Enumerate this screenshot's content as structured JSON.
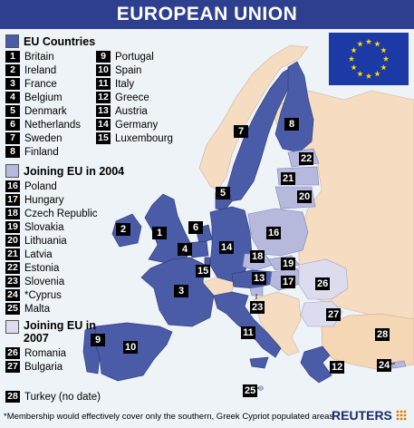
{
  "title": "EUROPEAN UNION",
  "colors": {
    "eu": "#4a5ca8",
    "eu2004": "#b6b8dc",
    "eu2007": "#dcdcee",
    "turkey": "#f5d6b5",
    "nonmember": "#f6ddc1",
    "sea": "#eef3f8",
    "title_bar": "#2e3f8f",
    "flag_blue": "#1c3aa6",
    "flag_star": "#ffd500"
  },
  "legend": {
    "eu_countries": {
      "heading": "EU Countries",
      "items": [
        {
          "n": "1",
          "name": "Britain"
        },
        {
          "n": "2",
          "name": "Ireland"
        },
        {
          "n": "3",
          "name": "France"
        },
        {
          "n": "4",
          "name": "Belgium"
        },
        {
          "n": "5",
          "name": "Denmark"
        },
        {
          "n": "6",
          "name": "Netherlands"
        },
        {
          "n": "7",
          "name": "Sweden"
        },
        {
          "n": "8",
          "name": "Finland"
        },
        {
          "n": "9",
          "name": "Portugal"
        },
        {
          "n": "10",
          "name": "Spain"
        },
        {
          "n": "11",
          "name": "Italy"
        },
        {
          "n": "12",
          "name": "Greece"
        },
        {
          "n": "13",
          "name": "Austria"
        },
        {
          "n": "14",
          "name": "Germany"
        },
        {
          "n": "15",
          "name": "Luxembourg"
        }
      ]
    },
    "joining_2004": {
      "heading": "Joining EU in 2004",
      "items": [
        {
          "n": "16",
          "name": "Poland"
        },
        {
          "n": "17",
          "name": "Hungary"
        },
        {
          "n": "18",
          "name": "Czech Republic"
        },
        {
          "n": "19",
          "name": "Slovakia"
        },
        {
          "n": "20",
          "name": "Lithuania"
        },
        {
          "n": "21",
          "name": "Latvia"
        },
        {
          "n": "22",
          "name": "Estonia"
        },
        {
          "n": "23",
          "name": "Slovenia"
        },
        {
          "n": "24",
          "name": "*Cyprus"
        },
        {
          "n": "25",
          "name": "Malta"
        }
      ]
    },
    "joining_2007": {
      "heading": "Joining EU in 2007",
      "items": [
        {
          "n": "26",
          "name": "Romania"
        },
        {
          "n": "27",
          "name": "Bulgaria"
        }
      ]
    },
    "turkey": {
      "n": "28",
      "name": "Turkey (no date)"
    }
  },
  "map_labels": [
    "1",
    "2",
    "3",
    "4",
    "5",
    "6",
    "7",
    "8",
    "9",
    "10",
    "11",
    "12",
    "13",
    "14",
    "15",
    "16",
    "17",
    "18",
    "19",
    "20",
    "21",
    "22",
    "23",
    "24",
    "25",
    "26",
    "27",
    "28"
  ],
  "footnote": "*Membership would effectively cover only the southern, Greek Cypriot populated areas",
  "logo": "REUTERS",
  "flag": {
    "icon": "eu-flag-icon",
    "stars": 12
  }
}
